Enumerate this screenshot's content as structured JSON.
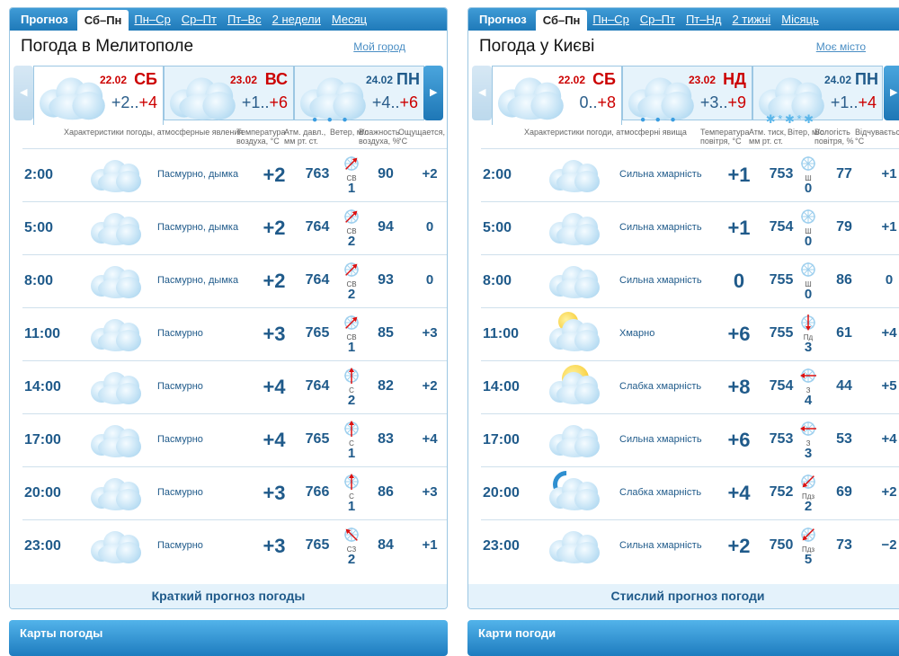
{
  "colors": {
    "accent": "#1f7ab9",
    "weekend": "#cc0000",
    "text": "#1f5a8a"
  },
  "panels": [
    {
      "tabs": [
        "Прогноз",
        "Сб–Пн",
        "Пн–Ср",
        "Ср–Пт",
        "Пт–Вс",
        "2 недели",
        "Месяц"
      ],
      "active_tab": 1,
      "title": "Погода в Мелитополе",
      "my_city": "Мой город",
      "days": [
        {
          "date": "22.02",
          "name": "СБ",
          "min": "+2",
          "max": "+4",
          "weekend": true,
          "icon": "cloudy"
        },
        {
          "date": "23.02",
          "name": "ВС",
          "min": "+1",
          "max": "+6",
          "weekend": true,
          "icon": "cloudy"
        },
        {
          "date": "24.02",
          "name": "ПН",
          "min": "+4",
          "max": "+6",
          "weekend": false,
          "icon": "rain"
        }
      ],
      "headers": [
        "Характеристики погоды, атмосферные явления",
        "Температура воздуха, °C",
        "Атм. давл., мм рт. ст.",
        "Ветер, м/с",
        "Влажность воздуха, %",
        "Ощущается, °C"
      ],
      "rows": [
        {
          "time": "2:00",
          "icon": "cloudy",
          "desc": "Пасмурно, дымка",
          "temp": "+2",
          "pressure": "763",
          "wind_dir": "СВ",
          "wind_speed": "1",
          "humidity": "90",
          "feels": "+2"
        },
        {
          "time": "5:00",
          "icon": "cloudy",
          "desc": "Пасмурно, дымка",
          "temp": "+2",
          "pressure": "764",
          "wind_dir": "СВ",
          "wind_speed": "2",
          "humidity": "94",
          "feels": "0"
        },
        {
          "time": "8:00",
          "icon": "cloudy",
          "desc": "Пасмурно, дымка",
          "temp": "+2",
          "pressure": "764",
          "wind_dir": "СВ",
          "wind_speed": "2",
          "humidity": "93",
          "feels": "0"
        },
        {
          "time": "11:00",
          "icon": "cloudy",
          "desc": "Пасмурно",
          "temp": "+3",
          "pressure": "765",
          "wind_dir": "СВ",
          "wind_speed": "1",
          "humidity": "85",
          "feels": "+3"
        },
        {
          "time": "14:00",
          "icon": "cloudy",
          "desc": "Пасмурно",
          "temp": "+4",
          "pressure": "764",
          "wind_dir": "С",
          "wind_speed": "2",
          "humidity": "82",
          "feels": "+2"
        },
        {
          "time": "17:00",
          "icon": "cloudy",
          "desc": "Пасмурно",
          "temp": "+4",
          "pressure": "765",
          "wind_dir": "С",
          "wind_speed": "1",
          "humidity": "83",
          "feels": "+4"
        },
        {
          "time": "20:00",
          "icon": "cloudy",
          "desc": "Пасмурно",
          "temp": "+3",
          "pressure": "766",
          "wind_dir": "С",
          "wind_speed": "1",
          "humidity": "86",
          "feels": "+3"
        },
        {
          "time": "23:00",
          "icon": "cloudy",
          "desc": "Пасмурно",
          "temp": "+3",
          "pressure": "765",
          "wind_dir": "СЗ",
          "wind_speed": "2",
          "humidity": "84",
          "feels": "+1"
        }
      ],
      "footer": "Краткий прогноз погоды",
      "maps": "Карты погоды"
    },
    {
      "tabs": [
        "Прогноз",
        "Сб–Пн",
        "Пн–Ср",
        "Ср–Пт",
        "Пт–Нд",
        "2 тижні",
        "Місяць"
      ],
      "active_tab": 1,
      "title": "Погода у Києві",
      "my_city": "Моє місто",
      "days": [
        {
          "date": "22.02",
          "name": "СБ",
          "min": "0",
          "max": "+8",
          "weekend": true,
          "icon": "cloudy"
        },
        {
          "date": "23.02",
          "name": "НД",
          "min": "+3",
          "max": "+9",
          "weekend": true,
          "icon": "rain"
        },
        {
          "date": "24.02",
          "name": "ПН",
          "min": "+1",
          "max": "+4",
          "weekend": false,
          "icon": "snow"
        }
      ],
      "headers": [
        "Характеристики погоди, атмосферні явища",
        "Температура повітря, °C",
        "Атм. тиск, мм рт. ст.",
        "Вітер, м/с",
        "Вологість повітря, %",
        "Відчувається, °C"
      ],
      "rows": [
        {
          "time": "2:00",
          "icon": "cloudy",
          "desc": "Сильна хмарність",
          "temp": "+1",
          "pressure": "753",
          "wind_dir": "Ш",
          "wind_speed": "0",
          "humidity": "77",
          "feels": "+1"
        },
        {
          "time": "5:00",
          "icon": "cloudy",
          "desc": "Сильна хмарність",
          "temp": "+1",
          "pressure": "754",
          "wind_dir": "Ш",
          "wind_speed": "0",
          "humidity": "79",
          "feels": "+1"
        },
        {
          "time": "8:00",
          "icon": "cloudy",
          "desc": "Сильна хмарність",
          "temp": "0",
          "pressure": "755",
          "wind_dir": "Ш",
          "wind_speed": "0",
          "humidity": "86",
          "feels": "0"
        },
        {
          "time": "11:00",
          "icon": "cloudy-sun",
          "desc": "Хмарно",
          "temp": "+6",
          "pressure": "755",
          "wind_dir": "Пд",
          "wind_speed": "3",
          "humidity": "61",
          "feels": "+4"
        },
        {
          "time": "14:00",
          "icon": "sun-cloud",
          "desc": "Слабка хмарність",
          "temp": "+8",
          "pressure": "754",
          "wind_dir": "З",
          "wind_speed": "4",
          "humidity": "44",
          "feels": "+5"
        },
        {
          "time": "17:00",
          "icon": "cloudy",
          "desc": "Сильна хмарність",
          "temp": "+6",
          "pressure": "753",
          "wind_dir": "З",
          "wind_speed": "3",
          "humidity": "53",
          "feels": "+4"
        },
        {
          "time": "20:00",
          "icon": "moon-cloud",
          "desc": "Слабка хмарність",
          "temp": "+4",
          "pressure": "752",
          "wind_dir": "Пдз",
          "wind_speed": "2",
          "humidity": "69",
          "feels": "+2"
        },
        {
          "time": "23:00",
          "icon": "cloudy",
          "desc": "Сильна хмарність",
          "temp": "+2",
          "pressure": "750",
          "wind_dir": "Пдз",
          "wind_speed": "5",
          "humidity": "73",
          "feels": "−2"
        }
      ],
      "footer": "Стислий прогноз погоди",
      "maps": "Карти погоди"
    }
  ]
}
